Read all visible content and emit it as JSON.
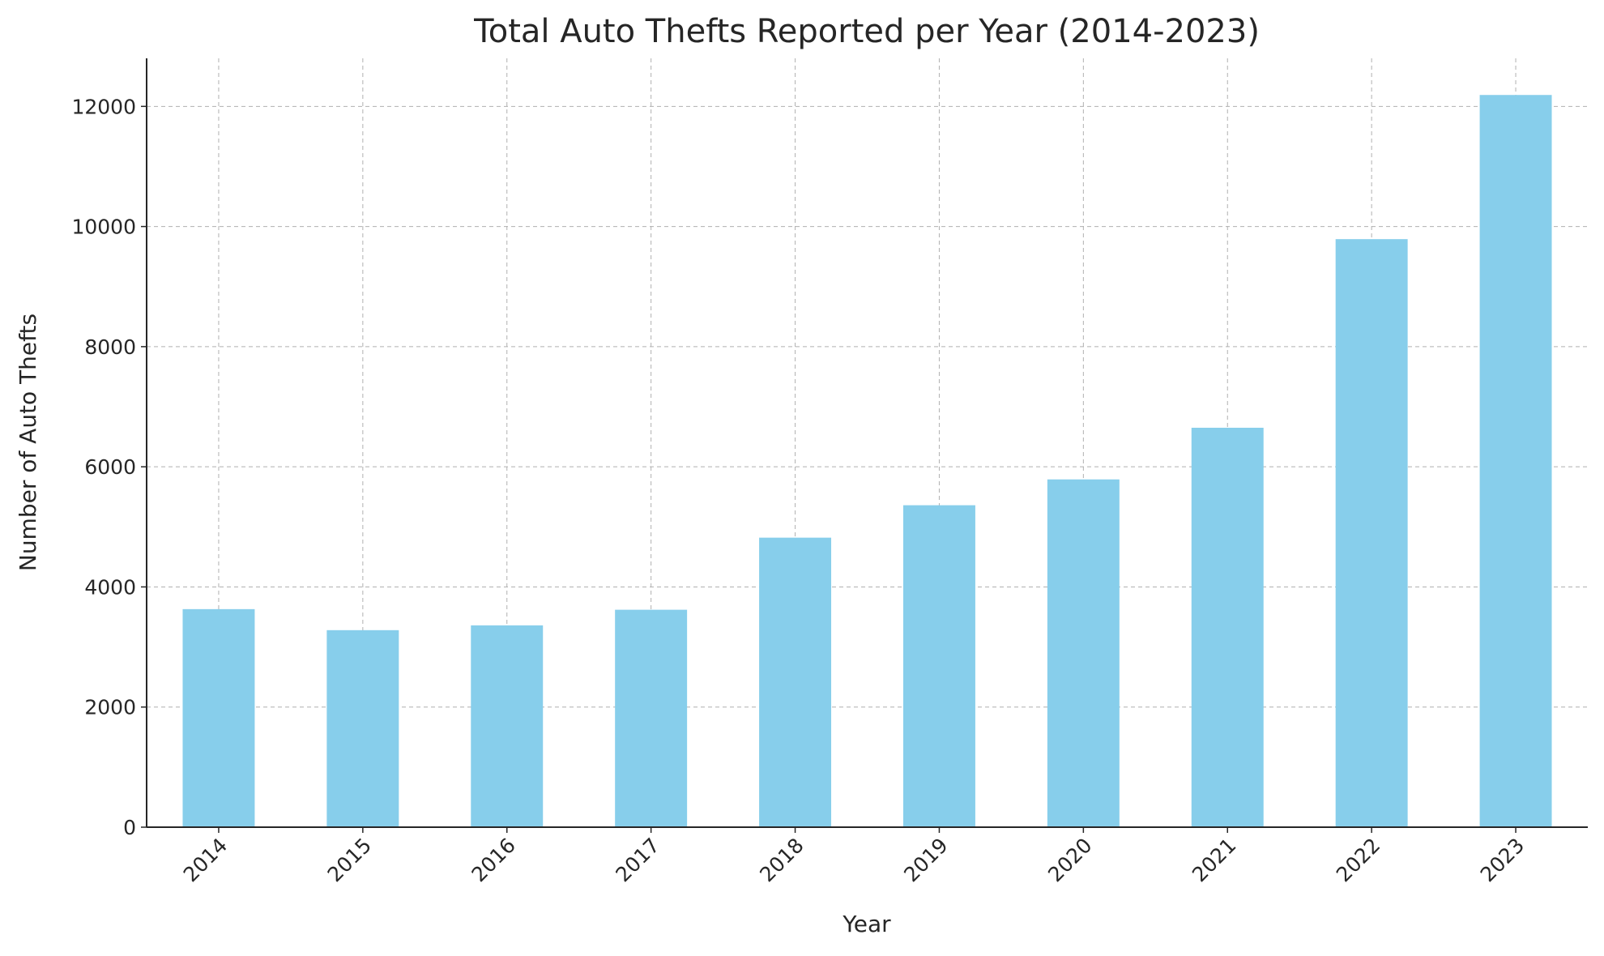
{
  "chart_data": {
    "type": "bar",
    "title": "Total Auto Thefts Reported per Year (2014-2023)",
    "x_label": "Year",
    "y_label": "Number of Auto Thefts",
    "categories": [
      "2014",
      "2015",
      "2016",
      "2017",
      "2018",
      "2019",
      "2020",
      "2021",
      "2022",
      "2023"
    ],
    "values": [
      3630,
      3280,
      3360,
      3620,
      4820,
      5360,
      5790,
      6650,
      9790,
      12190
    ],
    "color": "#87ceeb",
    "ylim": [
      0,
      12800
    ],
    "yticks": [
      0,
      2000,
      4000,
      6000,
      8000,
      10000,
      12000
    ],
    "grid": true
  }
}
